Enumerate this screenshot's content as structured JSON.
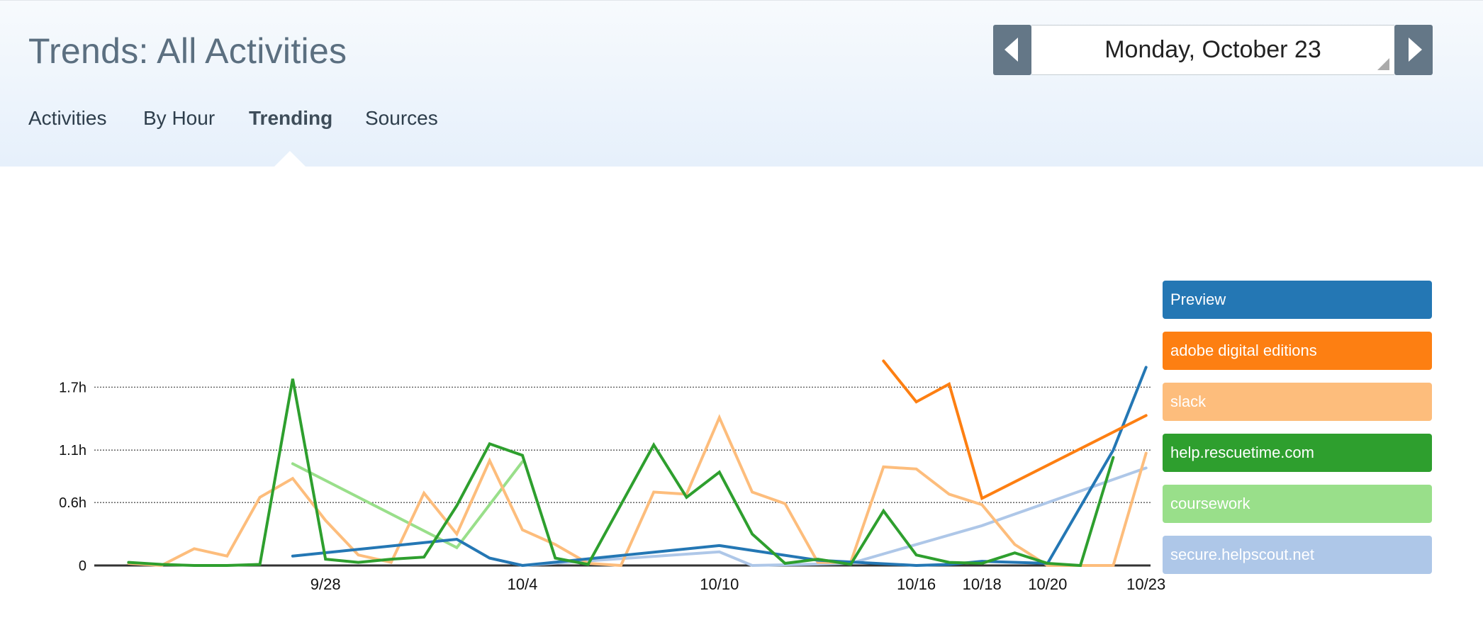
{
  "page": {
    "title": "Trends: All Activities"
  },
  "tabs": [
    {
      "label": "Activities",
      "active": false
    },
    {
      "label": "By Hour",
      "active": false
    },
    {
      "label": "Trending",
      "active": true
    },
    {
      "label": "Sources",
      "active": false
    }
  ],
  "date_nav": {
    "prev_icon": "chevron-left-icon",
    "next_icon": "chevron-right-icon",
    "date": "Monday, October 23"
  },
  "chart_data": {
    "type": "line",
    "x_tick_labels": [
      "9/28",
      "10/4",
      "10/10",
      "10/16",
      "10/18",
      "10/20",
      "10/23"
    ],
    "x_tick_days": [
      6,
      12,
      18,
      24,
      26,
      28,
      31
    ],
    "x_range_days": [
      -0.6,
      31.8
    ],
    "x_start_date": "9/22",
    "y_tick_labels": [
      "0",
      "0.6h",
      "1.1h",
      "1.7h"
    ],
    "y_ticks": [
      0,
      0.6,
      1.1,
      1.7
    ],
    "ylim": [
      0,
      2.0
    ],
    "grid": "horizontal dotted",
    "legend": "right",
    "series": [
      {
        "name": "Preview",
        "color": "#2477b4",
        "points": [
          [
            5,
            0.09
          ],
          [
            10,
            0.25
          ],
          [
            11,
            0.07
          ],
          [
            12,
            0.0
          ],
          [
            18,
            0.19
          ],
          [
            21,
            0.05
          ],
          [
            24,
            0.0
          ],
          [
            25,
            0.01
          ],
          [
            26,
            0.04
          ],
          [
            28,
            0.02
          ],
          [
            30,
            1.1
          ],
          [
            31,
            1.89
          ]
        ]
      },
      {
        "name": "adobe digital editions",
        "color": "#fd7f12",
        "points": [
          [
            23,
            1.95
          ],
          [
            24,
            1.56
          ],
          [
            25,
            1.73
          ],
          [
            26,
            0.64
          ],
          [
            31,
            1.43
          ]
        ]
      },
      {
        "name": "slack",
        "color": "#fdbd7c",
        "points": [
          [
            0,
            0.02
          ],
          [
            1,
            0.0
          ],
          [
            2,
            0.16
          ],
          [
            3,
            0.09
          ],
          [
            4,
            0.65
          ],
          [
            5,
            0.83
          ],
          [
            6,
            0.43
          ],
          [
            7,
            0.1
          ],
          [
            8,
            0.03
          ],
          [
            9,
            0.69
          ],
          [
            10,
            0.3
          ],
          [
            11,
            1.0
          ],
          [
            12,
            0.34
          ],
          [
            13,
            0.2
          ],
          [
            14,
            0.02
          ],
          [
            15,
            0.0
          ],
          [
            16,
            0.7
          ],
          [
            17,
            0.68
          ],
          [
            18,
            1.41
          ],
          [
            19,
            0.7
          ],
          [
            20,
            0.59
          ],
          [
            21,
            0.03
          ],
          [
            22,
            0.03
          ],
          [
            23,
            0.94
          ],
          [
            24,
            0.92
          ],
          [
            25,
            0.68
          ],
          [
            26,
            0.58
          ],
          [
            27,
            0.2
          ],
          [
            28,
            0.0
          ],
          [
            29,
            0.0
          ],
          [
            30,
            0.0
          ],
          [
            31,
            1.07
          ]
        ]
      },
      {
        "name": "help.rescuetime.com",
        "color": "#2e9f2e",
        "points": [
          [
            0,
            0.03
          ],
          [
            1,
            0.01
          ],
          [
            2,
            0.0
          ],
          [
            3,
            0.0
          ],
          [
            4,
            0.01
          ],
          [
            5,
            1.78
          ],
          [
            6,
            0.06
          ],
          [
            7,
            0.03
          ],
          [
            8,
            0.06
          ],
          [
            9,
            0.08
          ],
          [
            10,
            0.57
          ],
          [
            11,
            1.16
          ],
          [
            12,
            1.05
          ],
          [
            13,
            0.07
          ],
          [
            14,
            0.01
          ],
          [
            15,
            0.58
          ],
          [
            16,
            1.15
          ],
          [
            17,
            0.65
          ],
          [
            18,
            0.89
          ],
          [
            19,
            0.3
          ],
          [
            20,
            0.02
          ],
          [
            21,
            0.06
          ],
          [
            22,
            0.01
          ],
          [
            23,
            0.52
          ],
          [
            24,
            0.1
          ],
          [
            25,
            0.03
          ],
          [
            26,
            0.02
          ],
          [
            27,
            0.12
          ],
          [
            28,
            0.02
          ],
          [
            29,
            0.0
          ],
          [
            30,
            1.03
          ]
        ]
      },
      {
        "name": "coursework",
        "color": "#99df8a",
        "points": [
          [
            5,
            0.97
          ],
          [
            10,
            0.17
          ],
          [
            12,
            0.99
          ]
        ]
      },
      {
        "name": "secure.helpscout.net",
        "color": "#aec7e8",
        "points": [
          [
            11,
            0.07
          ],
          [
            12,
            0.0
          ],
          [
            18,
            0.13
          ],
          [
            19,
            0.0
          ],
          [
            22,
            0.02
          ],
          [
            26,
            0.38
          ],
          [
            31,
            0.93
          ]
        ]
      }
    ]
  }
}
